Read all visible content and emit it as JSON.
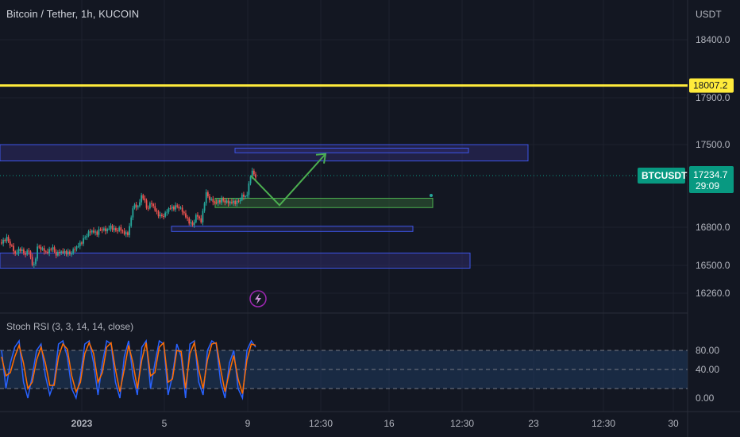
{
  "header": {
    "symbol_title": "Bitcoin / Tether, 1h, KUCOIN",
    "currency": "USDT"
  },
  "price_scale": {
    "ticks": [
      "18400.0",
      "17900.0",
      "17500.0",
      "16800.0",
      "16500.0",
      "16260.0"
    ],
    "horizontal_line_label": "18007.2",
    "ticker_label": "BTCUSDT",
    "last_price": "17234.7",
    "countdown": "29:09"
  },
  "indicator": {
    "label": "Stoch RSI (3, 3, 14, 14, close)",
    "ticks": [
      "80.00",
      "40.00",
      "0.00"
    ]
  },
  "time_axis": {
    "labels": [
      "2023",
      "5",
      "9",
      "12:30",
      "16",
      "12:30",
      "23",
      "12:30",
      "30"
    ]
  },
  "colors": {
    "background": "#131722",
    "grid": "#1e222d",
    "bull": "#26a69a",
    "bear": "#ef5350",
    "horizontal_line": "#ffeb3b",
    "zone_border": "#3d55e8",
    "zone_fill": "#2d2a66",
    "green_zone": "#4caf50",
    "arrow": "#4caf50",
    "stoch_k": "#2962ff",
    "stoch_d": "#ff6d00",
    "price_badge": "#089981"
  },
  "chart_data": [
    {
      "type": "candlestick",
      "title": "Bitcoin / Tether, 1h, KUCOIN",
      "y_unit": "USDT",
      "ylim": [
        16180,
        18560
      ],
      "x_dates": [
        "2023",
        "5",
        "9",
        "12:30",
        "16",
        "12:30",
        "23",
        "12:30",
        "30"
      ],
      "price_path": [
        16660,
        16700,
        16640,
        16560,
        16610,
        16560,
        16590,
        16440,
        16630,
        16600,
        16570,
        16620,
        16560,
        16580,
        16580,
        16560,
        16600,
        16640,
        16680,
        16740,
        16760,
        16740,
        16780,
        16760,
        16800,
        16760,
        16780,
        16740,
        16740,
        16980,
        16960,
        17080,
        16950,
        17000,
        16930,
        16880,
        16900,
        16960,
        16960,
        16970,
        16920,
        16860,
        16800,
        16900,
        16840,
        17080,
        17030,
        17000,
        17020,
        17020,
        17000,
        17010,
        17000,
        17060,
        17050,
        17270,
        17230
      ],
      "last_price": 17234.7,
      "horizontal_line": 18007.2,
      "zones": [
        {
          "from": 17360,
          "to": 17500
        },
        {
          "from": 16440,
          "to": 16570
        },
        {
          "from": 16755,
          "to": 16800
        },
        {
          "from": 16960,
          "to": 17040
        },
        {
          "from": 17430,
          "to": 17470
        }
      ],
      "projection": [
        [
          17233,
          16980,
          17420
        ]
      ]
    },
    {
      "type": "line",
      "title": "Stoch RSI (3, 3, 14, 14, close)",
      "ylim": [
        0,
        100
      ],
      "levels": [
        80,
        50,
        20
      ],
      "series": [
        {
          "name": "K",
          "values": [
            80,
            20,
            60,
            85,
            95,
            30,
            5,
            40,
            80,
            90,
            40,
            10,
            30,
            90,
            95,
            70,
            20,
            5,
            40,
            90,
            95,
            60,
            10,
            60,
            95,
            90,
            30,
            5,
            70,
            95,
            40,
            10,
            85,
            95,
            20,
            60,
            95,
            90,
            10,
            40,
            90,
            70,
            5,
            90,
            95,
            30,
            10,
            80,
            95,
            90,
            30,
            5,
            60,
            80,
            20,
            5,
            80,
            95,
            85
          ]
        },
        {
          "name": "D",
          "values": [
            70,
            40,
            45,
            70,
            88,
            60,
            20,
            30,
            65,
            85,
            60,
            25,
            25,
            70,
            90,
            82,
            40,
            15,
            30,
            75,
            92,
            75,
            30,
            45,
            85,
            92,
            50,
            15,
            50,
            88,
            60,
            20,
            65,
            92,
            40,
            45,
            85,
            92,
            30,
            35,
            80,
            78,
            20,
            75,
            92,
            50,
            20,
            65,
            90,
            92,
            50,
            15,
            45,
            72,
            35,
            12,
            65,
            90,
            88
          ]
        }
      ]
    }
  ]
}
